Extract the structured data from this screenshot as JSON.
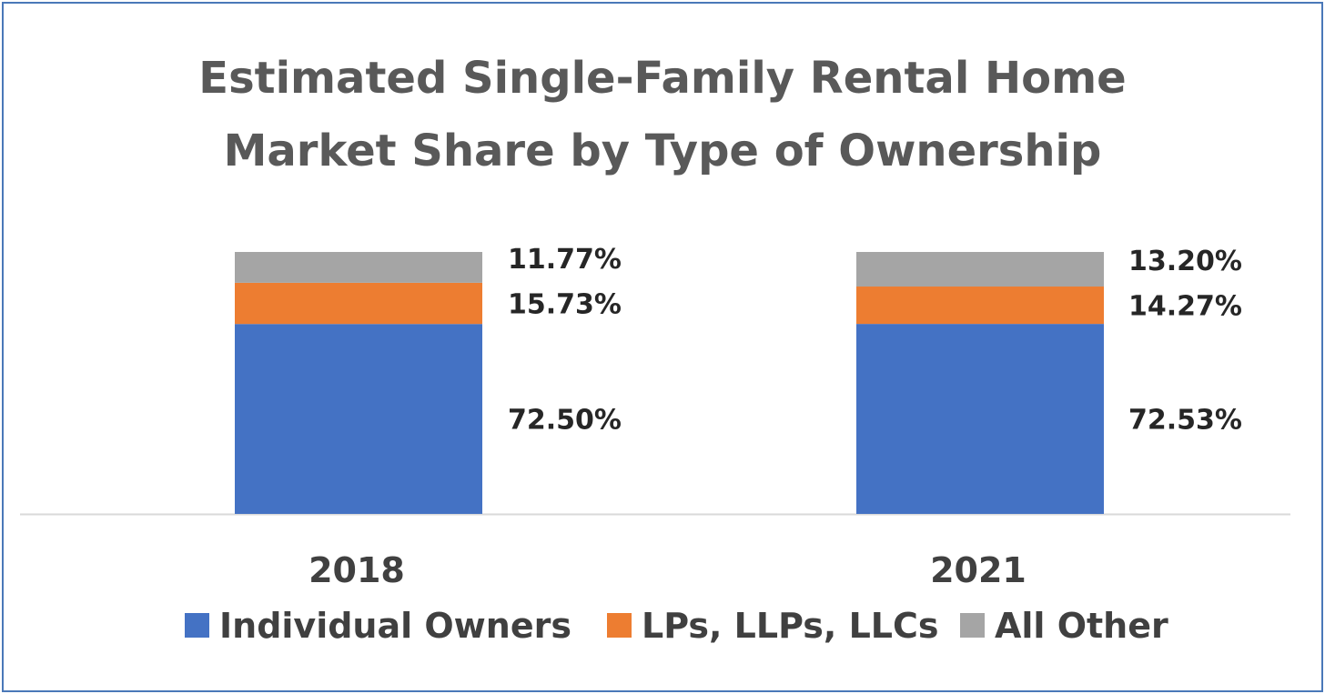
{
  "chart_data": {
    "type": "bar",
    "stacked": true,
    "title": "Estimated Single-Family Rental Home Market Share by Type of Ownership",
    "title_lines": [
      "Estimated Single-Family Rental Home",
      "Market Share by Type of Ownership"
    ],
    "categories": [
      "2018",
      "2021"
    ],
    "series": [
      {
        "name": "Individual Owners",
        "values": [
          72.5,
          72.53
        ],
        "labels": [
          "72.50%",
          "72.53%"
        ],
        "color": "#4472c4"
      },
      {
        "name": "LPs, LLPs, LLCs",
        "values": [
          15.73,
          14.27
        ],
        "labels": [
          "15.73%",
          "14.27%"
        ],
        "color": "#ed7d31"
      },
      {
        "name": "All Other",
        "values": [
          11.77,
          13.2
        ],
        "labels": [
          "11.77%",
          "13.20%"
        ],
        "color": "#a5a5a5"
      }
    ],
    "ylim": [
      0,
      100
    ],
    "grid": false,
    "legend": "bottom",
    "xlabel": "",
    "ylabel": ""
  },
  "colors": {
    "border": "#4a78b8",
    "title": "#595959",
    "axis": "#d9d9d9"
  }
}
